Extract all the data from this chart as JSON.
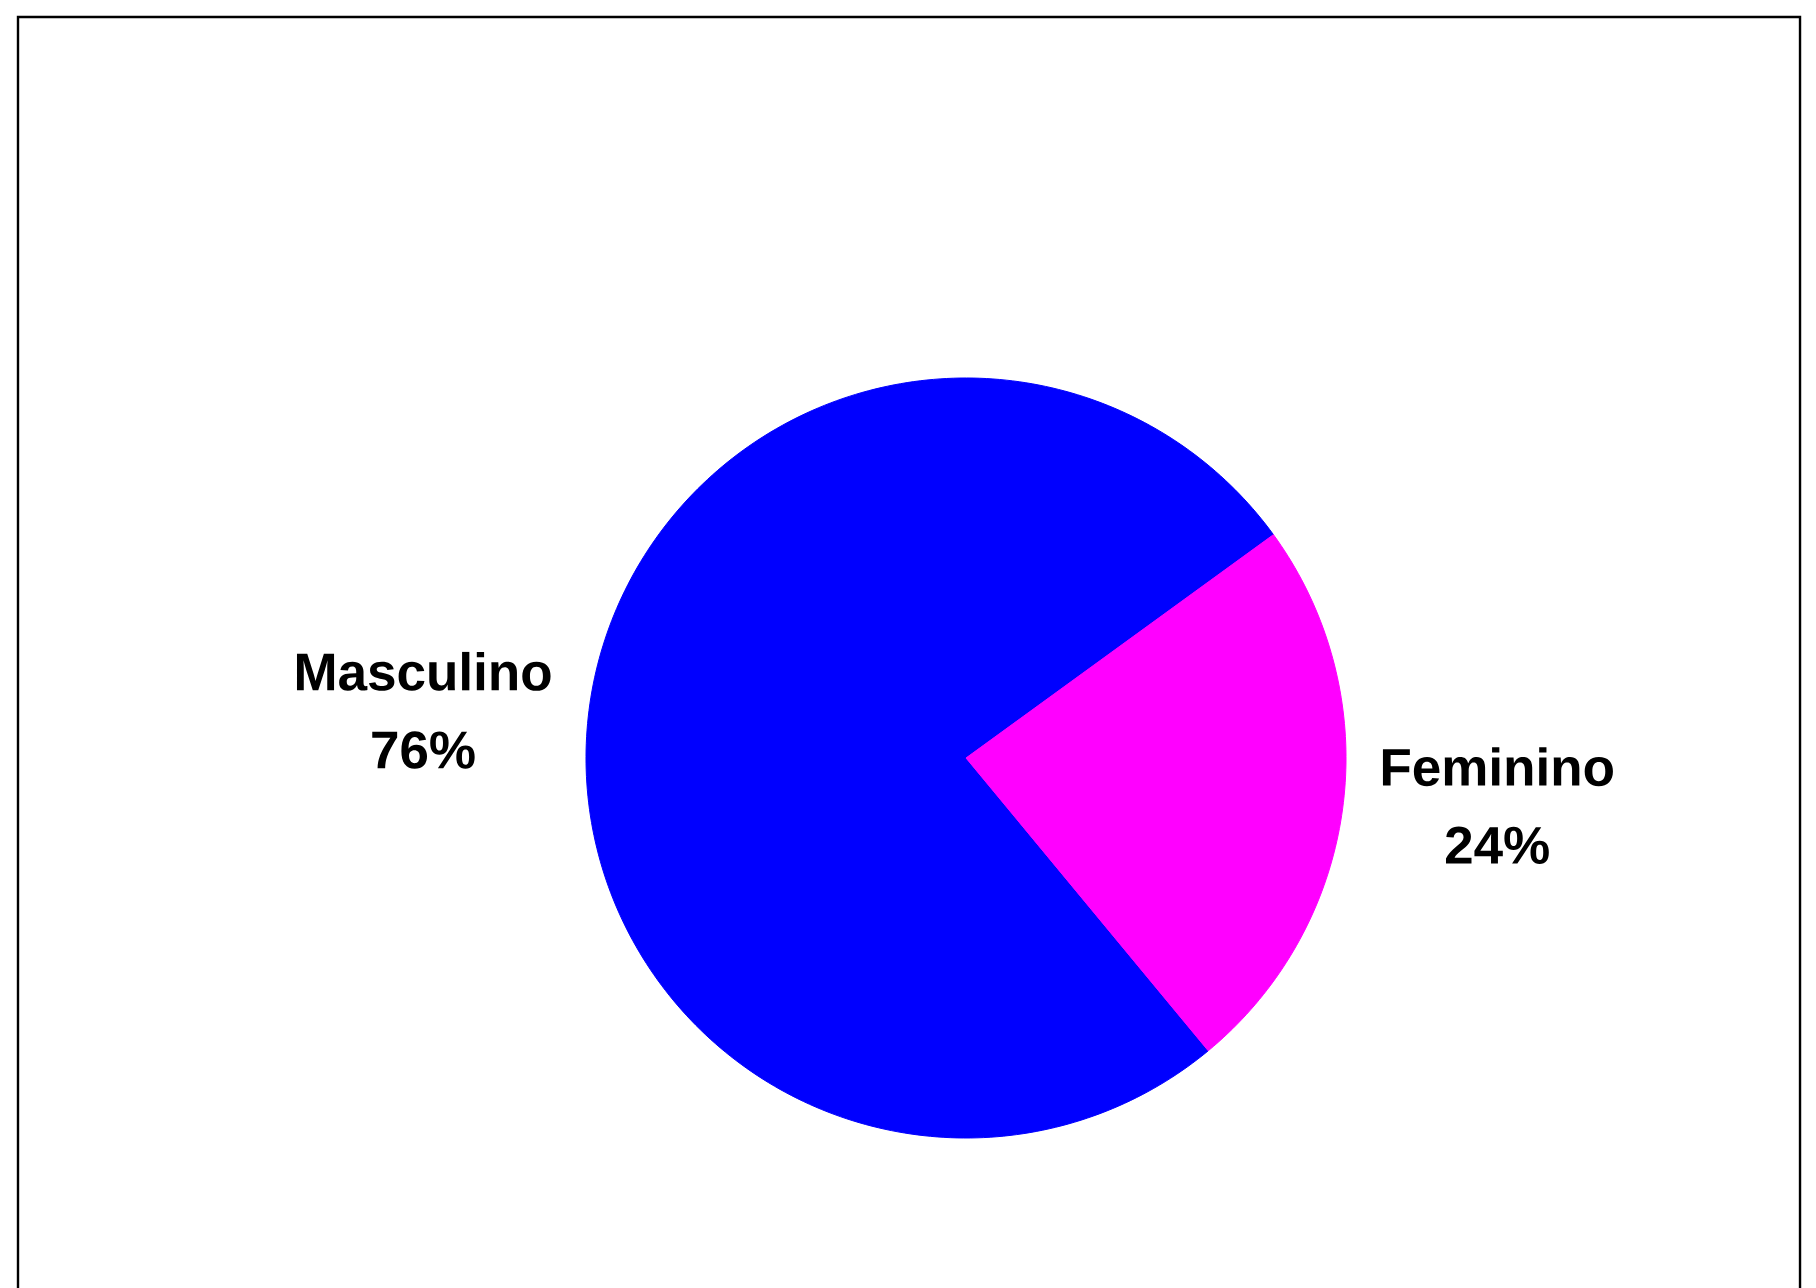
{
  "chart_data": {
    "type": "pie",
    "categories": [
      "Masculino",
      "Feminino"
    ],
    "values": [
      76,
      24
    ],
    "colors": [
      "#0000ff",
      "#ff00ff"
    ],
    "value_labels": [
      "76%",
      "24%"
    ]
  }
}
